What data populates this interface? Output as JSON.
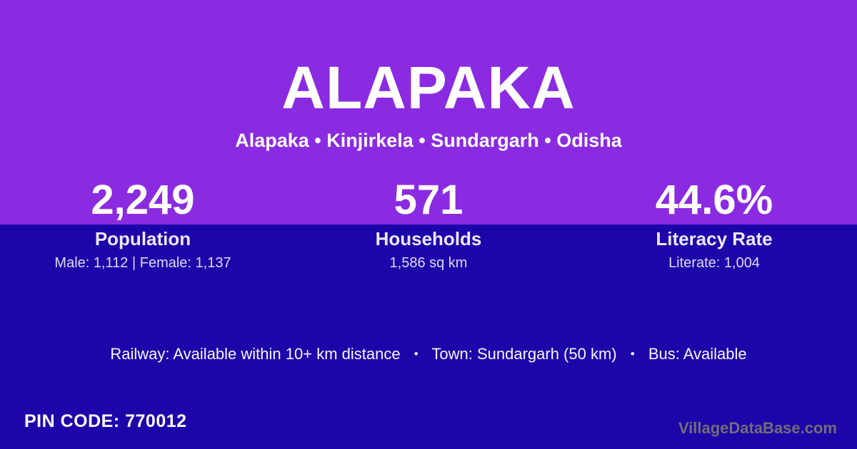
{
  "header": {
    "title": "ALAPAKA",
    "breadcrumb": "Alapaka • Kinjirkela • Sundargarh • Odisha"
  },
  "stats": [
    {
      "value": "2,249",
      "label": "Population",
      "detail": "Male: 1,112 | Female: 1,137"
    },
    {
      "value": "571",
      "label": "Households",
      "detail": "1,586 sq km"
    },
    {
      "value": "44.6%",
      "label": "Literacy Rate",
      "detail": "Literate: 1,004"
    }
  ],
  "facilities": {
    "items": [
      "Railway: Available within 10+ km distance",
      "Town: Sundargarh (50 km)",
      "Bus: Available"
    ],
    "separator": "•"
  },
  "footer": {
    "pin_code": "PIN CODE: 770012",
    "watermark": "VillageDataBase.com"
  },
  "colors": {
    "top_background": "#8A2BE2",
    "bottom_background": "#1C06A9",
    "text": "#FFFFFF",
    "watermark_text": "#6F6F76"
  }
}
